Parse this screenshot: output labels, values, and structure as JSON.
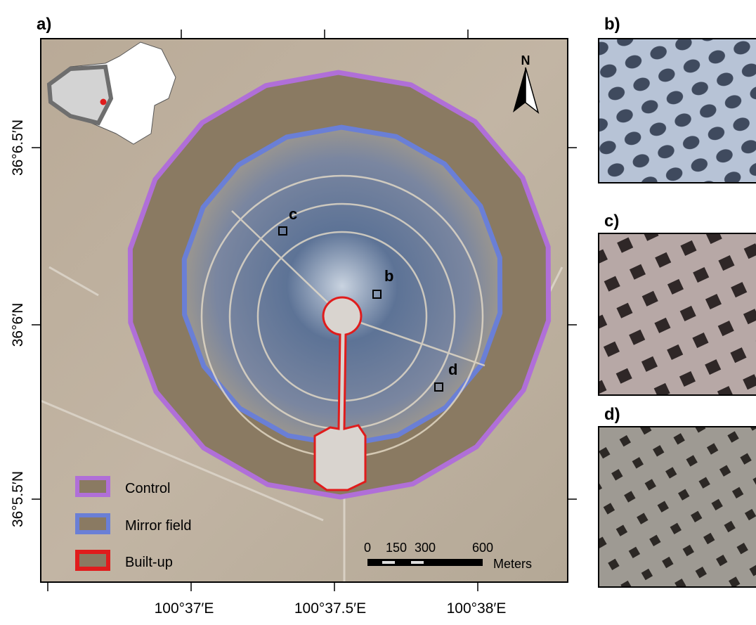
{
  "panels": {
    "a": "a)",
    "b": "b)",
    "c": "c)",
    "d": "d)"
  },
  "map": {
    "north": "N",
    "sites": [
      "b",
      "c",
      "d"
    ],
    "lat_labels": [
      "36°6.5′N",
      "36°6′N",
      "36°5.5′N"
    ],
    "lon_labels": [
      "100°37′E",
      "100°37.5′E",
      "100°38′E"
    ],
    "legend": [
      "Control",
      "Mirror field",
      "Built-up"
    ],
    "scale": {
      "ticks": [
        0,
        150,
        300,
        600
      ],
      "unit": "Meters"
    }
  }
}
